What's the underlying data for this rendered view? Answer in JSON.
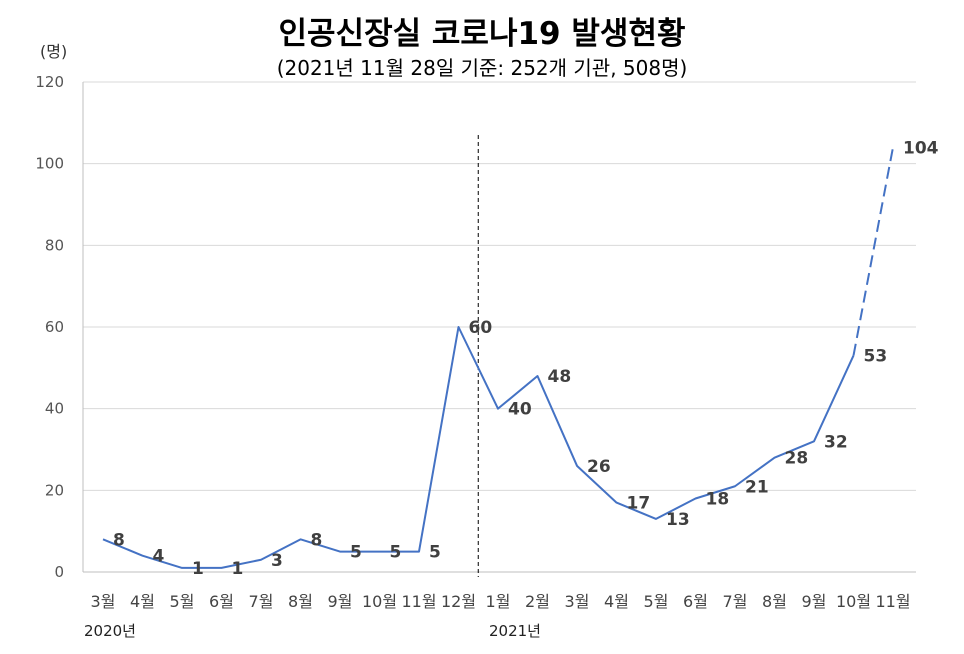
{
  "chart_data": {
    "type": "line",
    "title": "인공신장실 코로나19 발생현황",
    "subtitle": "(2021년 11월 28일 기준: 252개 기관, 508명)",
    "ylabel": "(명)",
    "ylim": [
      0,
      120
    ],
    "yticks": [
      0,
      20,
      40,
      60,
      80,
      100,
      120
    ],
    "categories": [
      "3월",
      "4월",
      "5월",
      "6월",
      "7월",
      "8월",
      "9월",
      "10월",
      "11월",
      "12월",
      "1월",
      "2월",
      "3월",
      "4월",
      "5월",
      "6월",
      "7월",
      "8월",
      "9월",
      "10월",
      "11월"
    ],
    "values": [
      8,
      4,
      1,
      1,
      3,
      8,
      5,
      5,
      5,
      60,
      40,
      48,
      26,
      17,
      13,
      18,
      21,
      28,
      32,
      53,
      104
    ],
    "year_labels": [
      "2020년",
      "2021년"
    ],
    "year_divider_after_index": 9.5,
    "dashed_last_segment": true,
    "grid": true,
    "line_color": "#4472C4"
  }
}
